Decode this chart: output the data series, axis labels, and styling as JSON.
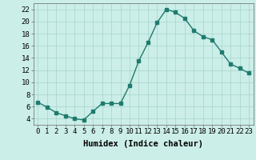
{
  "x": [
    0,
    1,
    2,
    3,
    4,
    5,
    6,
    7,
    8,
    9,
    10,
    11,
    12,
    13,
    14,
    15,
    16,
    17,
    18,
    19,
    20,
    21,
    22,
    23
  ],
  "y": [
    6.7,
    5.9,
    5.0,
    4.5,
    4.0,
    3.8,
    5.2,
    6.5,
    6.5,
    6.5,
    9.5,
    13.5,
    16.5,
    19.8,
    22.0,
    21.5,
    20.5,
    18.5,
    17.5,
    17.0,
    15.0,
    13.0,
    12.3,
    11.5
  ],
  "line_color": "#1e7b6e",
  "bg_color": "#cceee8",
  "grid_color": "#aad8d0",
  "xlabel": "Humidex (Indice chaleur)",
  "xlim": [
    -0.5,
    23.5
  ],
  "ylim": [
    3,
    23
  ],
  "yticks": [
    4,
    6,
    8,
    10,
    12,
    14,
    16,
    18,
    20,
    22
  ],
  "xticks": [
    0,
    1,
    2,
    3,
    4,
    5,
    6,
    7,
    8,
    9,
    10,
    11,
    12,
    13,
    14,
    15,
    16,
    17,
    18,
    19,
    20,
    21,
    22,
    23
  ],
  "xlabel_fontsize": 7.5,
  "tick_fontsize": 6.5
}
